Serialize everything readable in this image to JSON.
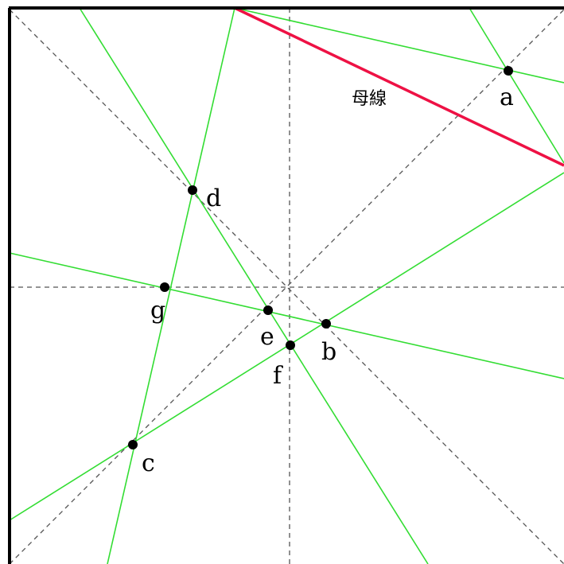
{
  "colors": {
    "frame": "#000000",
    "guide": "#555555",
    "crease": "#33dd33",
    "highlight": "#ee1144",
    "point": "#000000"
  },
  "labels": {
    "a": "a",
    "b": "b",
    "c": "c",
    "d": "d",
    "e": "e",
    "f": "f",
    "g": "g",
    "generator": "母線"
  }
}
